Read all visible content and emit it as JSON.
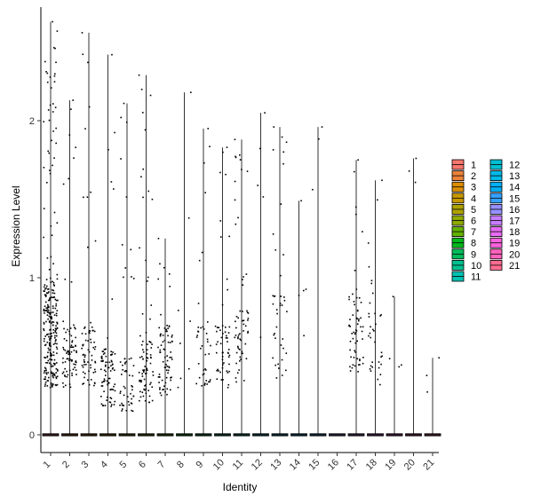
{
  "chart_data": {
    "type": "violin",
    "xlabel": "Identity",
    "ylabel": "Expression Level",
    "categories": [
      "1",
      "2",
      "3",
      "4",
      "5",
      "6",
      "7",
      "8",
      "9",
      "10",
      "11",
      "12",
      "13",
      "14",
      "15",
      "16",
      "17",
      "18",
      "19",
      "20",
      "21"
    ],
    "y_ticks": [
      0,
      1,
      2
    ],
    "ylim": [
      -0.12,
      2.7
    ],
    "grid": false,
    "legend_position": "right",
    "legend_columns": 2,
    "series": [
      {
        "name": "1",
        "color": "#F8766D",
        "max": 2.63,
        "n": 260,
        "bulk": [
          0.3,
          1.0
        ]
      },
      {
        "name": "2",
        "color": "#EC8239",
        "max": 2.13,
        "n": 80,
        "bulk": [
          0.3,
          0.7
        ]
      },
      {
        "name": "3",
        "color": "#DB8E00",
        "max": 2.56,
        "n": 70,
        "bulk": [
          0.3,
          0.7
        ]
      },
      {
        "name": "4",
        "color": "#C79800",
        "max": 2.42,
        "n": 90,
        "bulk": [
          0.18,
          0.55
        ]
      },
      {
        "name": "5",
        "color": "#AEA200",
        "max": 2.11,
        "n": 55,
        "bulk": [
          0.15,
          0.5
        ]
      },
      {
        "name": "6",
        "color": "#8FAA00",
        "max": 2.29,
        "n": 85,
        "bulk": [
          0.2,
          0.6
        ]
      },
      {
        "name": "7",
        "color": "#64B200",
        "max": 1.25,
        "n": 75,
        "bulk": [
          0.25,
          0.7
        ]
      },
      {
        "name": "8",
        "color": "#00B81B",
        "max": 2.18,
        "n": 8,
        "bulk": [
          0.3,
          0.8
        ]
      },
      {
        "name": "9",
        "color": "#00BD5C",
        "max": 1.95,
        "n": 40,
        "bulk": [
          0.3,
          0.7
        ]
      },
      {
        "name": "10",
        "color": "#00C08E",
        "max": 1.83,
        "n": 55,
        "bulk": [
          0.3,
          0.7
        ]
      },
      {
        "name": "11",
        "color": "#00C1B2",
        "max": 1.88,
        "n": 60,
        "bulk": [
          0.3,
          0.8
        ]
      },
      {
        "name": "12",
        "color": "#00BFD0",
        "max": 2.05,
        "n": 5,
        "bulk": [
          0.6,
          1.8
        ]
      },
      {
        "name": "13",
        "color": "#00BAE8",
        "max": 1.96,
        "n": 40,
        "bulk": [
          0.35,
          0.9
        ]
      },
      {
        "name": "14",
        "color": "#00B0F6",
        "max": 1.49,
        "n": 5,
        "bulk": [
          0.4,
          1.0
        ]
      },
      {
        "name": "15",
        "color": "#35A2FF",
        "max": 1.96,
        "n": 3,
        "bulk": [
          1.3,
          1.9
        ]
      },
      {
        "name": "16",
        "color": "#9590FF",
        "max": 0.0,
        "n": 0,
        "bulk": [
          0,
          0
        ]
      },
      {
        "name": "17",
        "color": "#C77CFF",
        "max": 1.75,
        "n": 60,
        "bulk": [
          0.4,
          0.9
        ]
      },
      {
        "name": "18",
        "color": "#E76BF3",
        "max": 1.62,
        "n": 35,
        "bulk": [
          0.3,
          0.8
        ]
      },
      {
        "name": "19",
        "color": "#F962DD",
        "max": 0.88,
        "n": 4,
        "bulk": [
          0.3,
          0.8
        ]
      },
      {
        "name": "20",
        "color": "#FF62BC",
        "max": 1.76,
        "n": 3,
        "bulk": [
          0.8,
          1.7
        ]
      },
      {
        "name": "21",
        "color": "#FF6C91",
        "max": 0.49,
        "n": 3,
        "bulk": [
          0.25,
          0.5
        ]
      }
    ]
  }
}
